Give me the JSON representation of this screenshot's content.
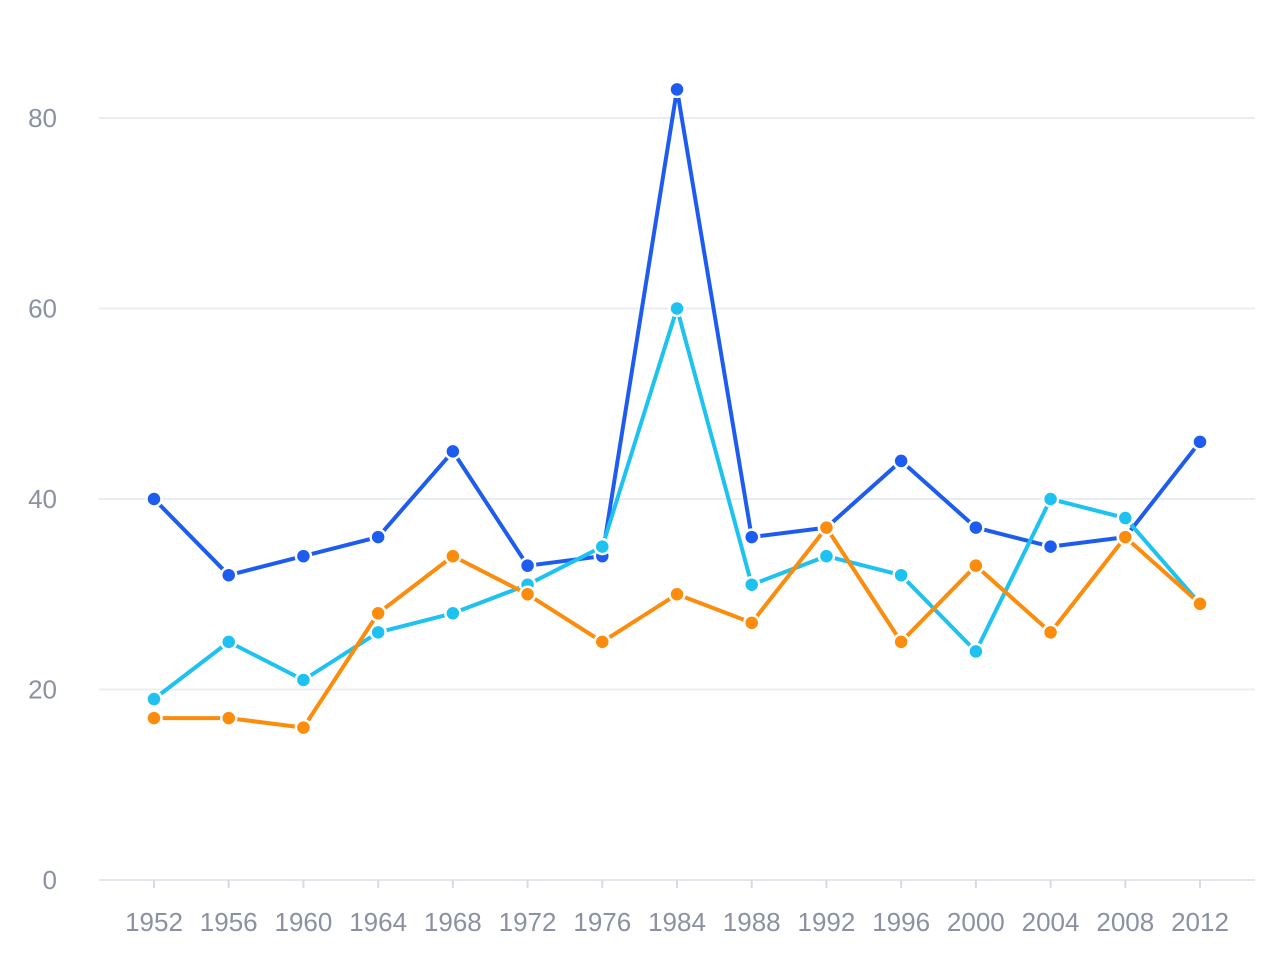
{
  "chart_data": {
    "type": "line",
    "categories": [
      "1952",
      "1956",
      "1960",
      "1964",
      "1968",
      "1972",
      "1976",
      "1984",
      "1988",
      "1992",
      "1996",
      "2000",
      "2004",
      "2008",
      "2012"
    ],
    "ylim": [
      0,
      90
    ],
    "yticks": [
      0,
      20,
      40,
      60,
      80
    ],
    "grid": true,
    "legend": "none",
    "series": [
      {
        "color": "#1e5cf0",
        "values": [
          40,
          32,
          34,
          36,
          45,
          33,
          34,
          83,
          36,
          37,
          44,
          37,
          35,
          36,
          46
        ]
      },
      {
        "color": "#1ec2f0",
        "values": [
          19,
          25,
          21,
          26,
          28,
          31,
          35,
          60,
          31,
          34,
          32,
          24,
          40,
          38,
          29
        ]
      },
      {
        "color": "#fb8c0c",
        "values": [
          17,
          17,
          16,
          28,
          34,
          30,
          25,
          30,
          27,
          37,
          25,
          33,
          26,
          36,
          29
        ]
      }
    ]
  }
}
